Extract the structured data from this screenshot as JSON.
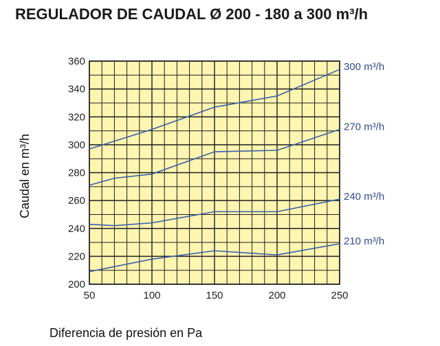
{
  "chart_data": {
    "type": "line",
    "title": "REGULADOR DE CAUDAL Ø 200 - 180 a 300 m³/h",
    "xlabel": "Diferencia de presión en Pa",
    "ylabel": "Caudal en m³/h",
    "xlim": [
      50,
      250
    ],
    "ylim": [
      200,
      360
    ],
    "x_ticks": [
      50,
      100,
      150,
      200,
      250
    ],
    "y_ticks": [
      200,
      220,
      240,
      260,
      280,
      300,
      320,
      340,
      360
    ],
    "grid": true,
    "legend": "labels at right end of each line",
    "series": [
      {
        "name": "300 m³/h",
        "x": [
          50,
          100,
          150,
          200,
          250
        ],
        "values": [
          297,
          311,
          327,
          335,
          354
        ]
      },
      {
        "name": "270 m³/h",
        "x": [
          50,
          70,
          100,
          150,
          200,
          250
        ],
        "values": [
          271,
          276,
          279,
          295,
          296,
          311
        ]
      },
      {
        "name": "240 m³/h",
        "x": [
          50,
          70,
          100,
          150,
          200,
          250
        ],
        "values": [
          243,
          242,
          244,
          252,
          252,
          261
        ]
      },
      {
        "name": "210 m³/h",
        "x": [
          50,
          100,
          150,
          200,
          250
        ],
        "values": [
          209,
          218,
          224,
          221,
          229
        ]
      }
    ]
  },
  "colors": {
    "plot_background": "#fdf5b0",
    "grid": "#1f1f1f",
    "series_line": "#3a5fa8",
    "series_label": "#2f4b8f"
  }
}
